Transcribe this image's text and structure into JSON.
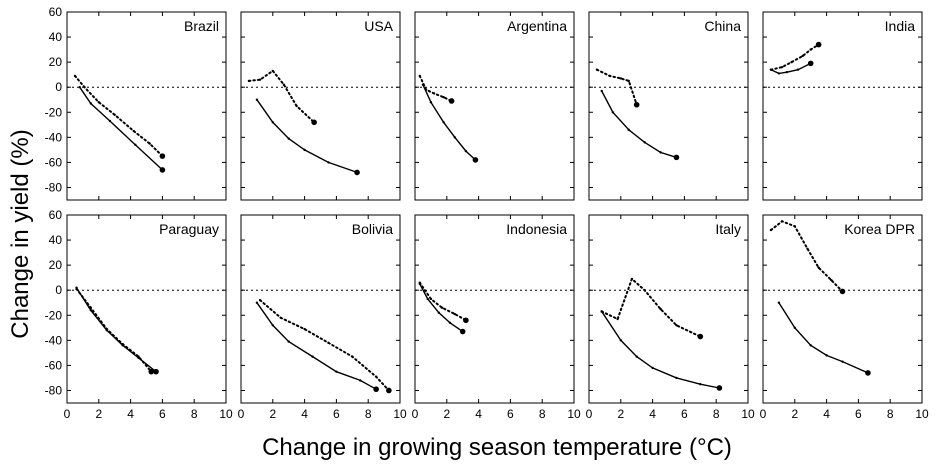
{
  "figure": {
    "ylabel": "Change in yield (%)",
    "xlabel": "Change in growing season temperature (°C)"
  },
  "chart_data": {
    "type": "line",
    "layout": "small multiples, 2 rows x 5 columns, shared axes",
    "xlim": [
      0,
      10
    ],
    "ylim": [
      -90,
      60
    ],
    "x_ticks": [
      0,
      2,
      4,
      6,
      8,
      10
    ],
    "y_ticks": [
      60,
      40,
      20,
      0,
      -20,
      -40,
      -60,
      -80
    ],
    "x_tick_labels": [
      "0",
      "2",
      "4",
      "6",
      "8",
      "10"
    ],
    "y_tick_labels": [
      "60",
      "40",
      "20",
      "0",
      "-20",
      "-40",
      "-60",
      "-80"
    ],
    "reference_line": {
      "y": 0,
      "style": "dotted"
    },
    "series_styles": [
      "solid",
      "dotted"
    ],
    "panels": [
      {
        "name": "Brazil",
        "series": [
          {
            "style": "solid",
            "x": [
              0.8,
              1.5,
              2.7,
              4.3,
              6.0
            ],
            "y": [
              0,
              -13,
              -27,
              -46,
              -66
            ]
          },
          {
            "style": "dotted",
            "x": [
              0.5,
              1.1,
              2.0,
              3.0,
              4.2,
              5.2,
              6.0
            ],
            "y": [
              9,
              0,
              -12,
              -22,
              -35,
              -45,
              -55
            ]
          }
        ]
      },
      {
        "name": "USA",
        "series": [
          {
            "style": "solid",
            "x": [
              1.0,
              2.0,
              3.0,
              4.0,
              5.5,
              7.3
            ],
            "y": [
              -10,
              -28,
              -41,
              -50,
              -60,
              -68
            ]
          },
          {
            "style": "dotted",
            "x": [
              0.5,
              1.2,
              2.0,
              2.7,
              3.5,
              4.6
            ],
            "y": [
              5,
              6,
              13,
              2,
              -15,
              -28
            ]
          }
        ]
      },
      {
        "name": "Argentina",
        "series": [
          {
            "style": "solid",
            "x": [
              0.5,
              1.0,
              1.8,
              2.5,
              3.2,
              3.8
            ],
            "y": [
              2,
              -12,
              -28,
              -40,
              -51,
              -58
            ]
          },
          {
            "style": "dotted",
            "x": [
              0.3,
              0.7,
              1.2,
              1.8,
              2.3
            ],
            "y": [
              9,
              -2,
              -5,
              -8,
              -11
            ]
          }
        ]
      },
      {
        "name": "China",
        "series": [
          {
            "style": "solid",
            "x": [
              0.8,
              1.5,
              2.5,
              3.5,
              4.5,
              5.5
            ],
            "y": [
              -3,
              -20,
              -34,
              -44,
              -52,
              -56
            ]
          },
          {
            "style": "dotted",
            "x": [
              0.5,
              1.3,
              2.0,
              2.5,
              3.0
            ],
            "y": [
              14,
              9,
              7,
              5,
              -14
            ]
          }
        ]
      },
      {
        "name": "India",
        "series": [
          {
            "style": "solid",
            "x": [
              0.5,
              1.0,
              1.5,
              2.2,
              3.0
            ],
            "y": [
              14,
              11,
              12,
              14,
              19
            ]
          },
          {
            "style": "dotted",
            "x": [
              0.5,
              1.2,
              1.8,
              2.5,
              3.0,
              3.5
            ],
            "y": [
              14,
              16,
              20,
              25,
              30,
              34
            ]
          }
        ]
      },
      {
        "name": "Paraguay",
        "series": [
          {
            "style": "solid",
            "x": [
              0.6,
              1.5,
              2.5,
              3.5,
              4.5,
              5.6
            ],
            "y": [
              2,
              -16,
              -32,
              -44,
              -54,
              -65
            ]
          },
          {
            "style": "dotted",
            "x": [
              0.6,
              1.5,
              2.5,
              3.5,
              4.5,
              5.3
            ],
            "y": [
              1,
              -14,
              -31,
              -43,
              -53,
              -65
            ]
          }
        ]
      },
      {
        "name": "Bolivia",
        "series": [
          {
            "style": "solid",
            "x": [
              1.0,
              2.0,
              3.0,
              4.5,
              6.0,
              7.5,
              8.5
            ],
            "y": [
              -10,
              -28,
              -41,
              -53,
              -65,
              -72,
              -79
            ]
          },
          {
            "style": "dotted",
            "x": [
              1.2,
              2.5,
              4.0,
              5.5,
              7.0,
              8.5,
              9.3
            ],
            "y": [
              -8,
              -22,
              -31,
              -42,
              -53,
              -69,
              -80
            ]
          }
        ]
      },
      {
        "name": "Indonesia",
        "series": [
          {
            "style": "solid",
            "x": [
              0.3,
              0.8,
              1.5,
              2.2,
              3.0
            ],
            "y": [
              5,
              -7,
              -18,
              -26,
              -33
            ]
          },
          {
            "style": "dotted",
            "x": [
              0.3,
              1.0,
              1.7,
              2.5,
              3.2
            ],
            "y": [
              6,
              -7,
              -14,
              -19,
              -24
            ]
          }
        ]
      },
      {
        "name": "Italy",
        "series": [
          {
            "style": "solid",
            "x": [
              0.8,
              2.0,
              3.0,
              4.0,
              5.5,
              7.0,
              8.2
            ],
            "y": [
              -17,
              -40,
              -53,
              -62,
              -70,
              -75,
              -78
            ]
          },
          {
            "style": "dotted",
            "x": [
              0.8,
              1.8,
              2.7,
              3.5,
              4.5,
              5.5,
              7.0
            ],
            "y": [
              -17,
              -23,
              9,
              0,
              -15,
              -28,
              -37
            ]
          }
        ]
      },
      {
        "name": "Korea DPR",
        "series": [
          {
            "style": "solid",
            "x": [
              1.0,
              2.0,
              3.0,
              4.0,
              5.0,
              6.6
            ],
            "y": [
              -10,
              -30,
              -44,
              -52,
              -57,
              -66
            ]
          },
          {
            "style": "dotted",
            "x": [
              0.5,
              1.2,
              2.0,
              2.8,
              3.5,
              4.3,
              5.0
            ],
            "y": [
              48,
              55,
              51,
              33,
              18,
              8,
              -1
            ]
          }
        ]
      }
    ]
  }
}
